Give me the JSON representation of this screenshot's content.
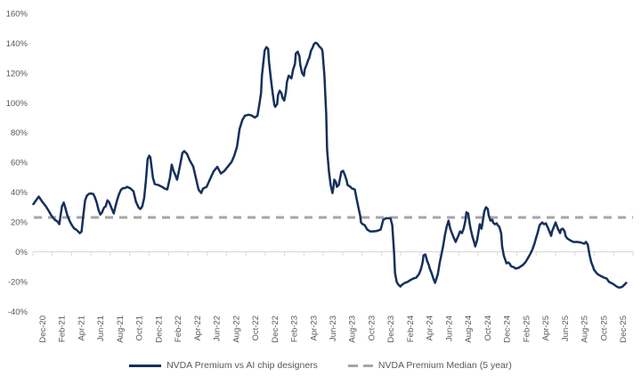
{
  "colors": {
    "series_line": "#16305c",
    "median_line": "#a6a6a6",
    "axis_line": "#d9d9d9",
    "label_text": "#595959",
    "background": "#ffffff"
  },
  "legend": {
    "series1_label": "NVDA Premium vs AI chip designers",
    "series2_label": "NVDA Premium Median (5 year)"
  },
  "chart_data": {
    "type": "line",
    "title": "",
    "xlabel": "",
    "ylabel": "",
    "grid": "only zero axis line",
    "legend_position": "bottom-center",
    "y_axis": {
      "min": -40,
      "max": 160,
      "step": 20,
      "format": "percent",
      "tick_labels": [
        "160%",
        "140%",
        "120%",
        "100%",
        "80%",
        "60%",
        "40%",
        "20%",
        "0%",
        "-20%",
        "-40%"
      ]
    },
    "x_axis": {
      "unit": "month",
      "range_months": [
        0,
        61
      ],
      "labels": [
        "Dec-20",
        "Feb-21",
        "Apr-21",
        "Jun-21",
        "Aug-21",
        "Oct-21",
        "Dec-21",
        "Feb-22",
        "Apr-22",
        "Jun-22",
        "Aug-22",
        "Oct-22",
        "Dec-22",
        "Feb-23",
        "Apr-23",
        "Jun-23",
        "Aug-23",
        "Oct-23",
        "Dec-23",
        "Feb-24",
        "Apr-24",
        "Jun-24",
        "Aug-24",
        "Oct-24",
        "Dec-24",
        "Feb-25",
        "Apr-25",
        "Jun-25",
        "Aug-25",
        "Oct-25",
        "Dec-25"
      ],
      "label_rotation_deg": -90
    },
    "series": [
      {
        "name": "NVDA Premium vs AI chip designers",
        "style": "solid",
        "color": "#16305c",
        "points": [
          [
            0,
            32
          ],
          [
            0.55,
            37
          ],
          [
            0.92,
            33.5
          ],
          [
            1.28,
            30.5
          ],
          [
            1.56,
            27.5
          ],
          [
            1.83,
            24.5
          ],
          [
            2.2,
            21.5
          ],
          [
            2.48,
            20.3
          ],
          [
            2.66,
            18.5
          ],
          [
            2.94,
            30.5
          ],
          [
            3.12,
            33
          ],
          [
            3.3,
            29
          ],
          [
            3.49,
            24.5
          ],
          [
            3.67,
            21.5
          ],
          [
            3.85,
            19
          ],
          [
            4.04,
            17
          ],
          [
            4.22,
            15.5
          ],
          [
            4.4,
            14.9
          ],
          [
            4.59,
            13.7
          ],
          [
            4.77,
            12.5
          ],
          [
            4.95,
            13.5
          ],
          [
            5.14,
            25
          ],
          [
            5.32,
            34.5
          ],
          [
            5.5,
            37.6
          ],
          [
            5.7,
            38.8
          ],
          [
            5.87,
            39.1
          ],
          [
            6.15,
            38.8
          ],
          [
            6.33,
            36.4
          ],
          [
            6.51,
            32.9
          ],
          [
            6.7,
            28
          ],
          [
            6.88,
            25
          ],
          [
            7.06,
            26.5
          ],
          [
            7.25,
            29.5
          ],
          [
            7.43,
            30.5
          ],
          [
            7.61,
            34.5
          ],
          [
            7.8,
            33
          ],
          [
            8.07,
            28.7
          ],
          [
            8.26,
            25.7
          ],
          [
            8.44,
            30.5
          ],
          [
            8.62,
            35
          ],
          [
            8.81,
            38.8
          ],
          [
            8.99,
            41.5
          ],
          [
            9.17,
            42.5
          ],
          [
            9.45,
            42.8
          ],
          [
            9.63,
            43.6
          ],
          [
            10,
            42.4
          ],
          [
            10.28,
            40.6
          ],
          [
            10.55,
            33.4
          ],
          [
            10.83,
            29.5
          ],
          [
            11.01,
            28.7
          ],
          [
            11.19,
            30.5
          ],
          [
            11.38,
            36
          ],
          [
            11.56,
            47.8
          ],
          [
            11.74,
            62
          ],
          [
            11.9,
            64.5
          ],
          [
            12.02,
            63.3
          ],
          [
            12.29,
            49.6
          ],
          [
            12.48,
            45.4
          ],
          [
            12.84,
            44.8
          ],
          [
            13.21,
            43.6
          ],
          [
            13.49,
            42.4
          ],
          [
            13.76,
            41.8
          ],
          [
            14.04,
            50
          ],
          [
            14.22,
            58.5
          ],
          [
            14.4,
            54.3
          ],
          [
            14.59,
            51.3
          ],
          [
            14.77,
            48.4
          ],
          [
            15.05,
            57.3
          ],
          [
            15.32,
            66.3
          ],
          [
            15.5,
            67.5
          ],
          [
            15.78,
            65.7
          ],
          [
            16.06,
            61.5
          ],
          [
            16.42,
            57.3
          ],
          [
            16.7,
            49.6
          ],
          [
            16.97,
            41.8
          ],
          [
            17.25,
            39.4
          ],
          [
            17.43,
            42.4
          ],
          [
            17.8,
            43.6
          ],
          [
            18.17,
            49
          ],
          [
            18.53,
            54
          ],
          [
            18.9,
            57
          ],
          [
            19.27,
            52.5
          ],
          [
            19.63,
            54.3
          ],
          [
            20,
            57.3
          ],
          [
            20.37,
            60.3
          ],
          [
            20.64,
            64.5
          ],
          [
            20.92,
            70.4
          ],
          [
            21.19,
            82.4
          ],
          [
            21.47,
            88.4
          ],
          [
            21.74,
            91.3
          ],
          [
            22.11,
            92
          ],
          [
            22.48,
            91.3
          ],
          [
            22.75,
            90.1
          ],
          [
            23.03,
            91.3
          ],
          [
            23.21,
            98.5
          ],
          [
            23.39,
            106.3
          ],
          [
            23.49,
            118.2
          ],
          [
            23.67,
            129
          ],
          [
            23.76,
            134.9
          ],
          [
            23.94,
            137.3
          ],
          [
            24.13,
            136.1
          ],
          [
            24.22,
            127.2
          ],
          [
            24.4,
            116.4
          ],
          [
            24.59,
            106.3
          ],
          [
            24.77,
            98.5
          ],
          [
            24.86,
            97.3
          ],
          [
            25.05,
            99.1
          ],
          [
            25.14,
            105.1
          ],
          [
            25.32,
            108.1
          ],
          [
            25.5,
            106.3
          ],
          [
            25.6,
            103.3
          ],
          [
            25.78,
            101.5
          ],
          [
            25.96,
            107.5
          ],
          [
            26.06,
            114
          ],
          [
            26.24,
            118.2
          ],
          [
            26.42,
            117
          ],
          [
            26.51,
            116.4
          ],
          [
            26.7,
            122.4
          ],
          [
            26.88,
            126
          ],
          [
            26.97,
            133.1
          ],
          [
            27.16,
            134.3
          ],
          [
            27.34,
            131.3
          ],
          [
            27.43,
            125.4
          ],
          [
            27.61,
            120
          ],
          [
            27.8,
            118.2
          ],
          [
            27.89,
            122.4
          ],
          [
            28.07,
            125.4
          ],
          [
            28.26,
            129
          ],
          [
            28.35,
            130.2
          ],
          [
            28.53,
            134.9
          ],
          [
            28.72,
            137.3
          ],
          [
            28.81,
            139.1
          ],
          [
            28.99,
            140.3
          ],
          [
            29.17,
            139.7
          ],
          [
            29.36,
            138
          ],
          [
            29.45,
            137.3
          ],
          [
            29.63,
            136.1
          ],
          [
            29.72,
            134.3
          ],
          [
            29.91,
            118.2
          ],
          [
            30.09,
            92.5
          ],
          [
            30.18,
            68.7
          ],
          [
            30.37,
            54.3
          ],
          [
            30.55,
            44.8
          ],
          [
            30.73,
            39.4
          ],
          [
            30.83,
            43
          ],
          [
            30.92,
            48.4
          ],
          [
            31.1,
            46.6
          ],
          [
            31.19,
            43.6
          ],
          [
            31.38,
            44.8
          ],
          [
            31.65,
            53.7
          ],
          [
            31.83,
            54.3
          ],
          [
            32.02,
            51.3
          ],
          [
            32.2,
            47.8
          ],
          [
            32.29,
            44.8
          ],
          [
            32.57,
            43.6
          ],
          [
            32.75,
            42.4
          ],
          [
            33.03,
            41.8
          ],
          [
            33.21,
            35.8
          ],
          [
            33.39,
            29.9
          ],
          [
            33.58,
            24.5
          ],
          [
            33.67,
            19.7
          ],
          [
            33.85,
            18.5
          ],
          [
            34.04,
            17.9
          ],
          [
            34.31,
            14.9
          ],
          [
            34.59,
            13.7
          ],
          [
            34.95,
            13.7
          ],
          [
            35.32,
            14
          ],
          [
            35.69,
            14.9
          ],
          [
            35.96,
            21.5
          ],
          [
            36.24,
            22.5
          ],
          [
            36.7,
            22.5
          ],
          [
            36.88,
            17.9
          ],
          [
            37.06,
            0
          ],
          [
            37.16,
            -14.3
          ],
          [
            37.34,
            -20.3
          ],
          [
            37.52,
            -22.1
          ],
          [
            37.71,
            -23.3
          ],
          [
            37.89,
            -22.1
          ],
          [
            38.17,
            -20.9
          ],
          [
            38.44,
            -20.3
          ],
          [
            38.72,
            -19.1
          ],
          [
            39.08,
            -17.9
          ],
          [
            39.36,
            -17.3
          ],
          [
            39.63,
            -14.9
          ],
          [
            39.82,
            -11.9
          ],
          [
            40,
            -7.2
          ],
          [
            40.09,
            -2.4
          ],
          [
            40.28,
            -1.8
          ],
          [
            40.46,
            -6
          ],
          [
            40.64,
            -9
          ],
          [
            40.73,
            -11.3
          ],
          [
            40.92,
            -14.3
          ],
          [
            41.1,
            -17.9
          ],
          [
            41.28,
            -20.9
          ],
          [
            41.56,
            -15
          ],
          [
            41.74,
            -8
          ],
          [
            41.93,
            -2
          ],
          [
            42.11,
            4
          ],
          [
            42.29,
            11
          ],
          [
            42.48,
            17
          ],
          [
            42.66,
            20.9
          ],
          [
            42.84,
            15.5
          ],
          [
            43.12,
            10.7
          ],
          [
            43.39,
            6.6
          ],
          [
            43.67,
            10.7
          ],
          [
            43.85,
            13.7
          ],
          [
            44.04,
            12.5
          ],
          [
            44.22,
            15.5
          ],
          [
            44.4,
            21
          ],
          [
            44.5,
            26.5
          ],
          [
            44.68,
            25.7
          ],
          [
            44.86,
            18
          ],
          [
            44.95,
            14.9
          ],
          [
            45.14,
            9.6
          ],
          [
            45.32,
            6
          ],
          [
            45.41,
            3.6
          ],
          [
            45.6,
            7.8
          ],
          [
            45.78,
            14.9
          ],
          [
            45.87,
            18.5
          ],
          [
            46.06,
            15.5
          ],
          [
            46.24,
            22.7
          ],
          [
            46.33,
            26.9
          ],
          [
            46.51,
            29.9
          ],
          [
            46.7,
            28.7
          ],
          [
            46.79,
            24.5
          ],
          [
            46.97,
            20.9
          ],
          [
            47.16,
            21.5
          ],
          [
            47.25,
            19.7
          ],
          [
            47.43,
            18.5
          ],
          [
            47.61,
            19.1
          ],
          [
            47.71,
            17.9
          ],
          [
            47.89,
            16.7
          ],
          [
            48.07,
            12.5
          ],
          [
            48.17,
            3.6
          ],
          [
            48.35,
            -2.8
          ],
          [
            48.53,
            -6
          ],
          [
            48.62,
            -7.8
          ],
          [
            48.81,
            -7.2
          ],
          [
            48.99,
            -8.4
          ],
          [
            49.08,
            -9.6
          ],
          [
            49.27,
            -10.1
          ],
          [
            49.45,
            -10.7
          ],
          [
            49.54,
            -11.3
          ],
          [
            49.91,
            -10.7
          ],
          [
            50,
            -10.1
          ],
          [
            50.28,
            -9
          ],
          [
            50.55,
            -7.2
          ],
          [
            50.83,
            -4.2
          ],
          [
            51.1,
            -1
          ],
          [
            51.28,
            1.5
          ],
          [
            51.47,
            5
          ],
          [
            51.65,
            9
          ],
          [
            51.83,
            13
          ],
          [
            52.02,
            17.9
          ],
          [
            52.29,
            19.7
          ],
          [
            52.48,
            18.5
          ],
          [
            52.66,
            19.1
          ],
          [
            52.84,
            16.7
          ],
          [
            53.03,
            13.7
          ],
          [
            53.21,
            10.7
          ],
          [
            53.3,
            13.7
          ],
          [
            53.49,
            16.7
          ],
          [
            53.67,
            19.7
          ],
          [
            53.76,
            17.9
          ],
          [
            53.94,
            14.9
          ],
          [
            54.13,
            12.5
          ],
          [
            54.22,
            14.9
          ],
          [
            54.4,
            15.5
          ],
          [
            54.59,
            13.7
          ],
          [
            54.68,
            10.7
          ],
          [
            54.86,
            9
          ],
          [
            55.14,
            7.8
          ],
          [
            55.5,
            6.6
          ],
          [
            55.87,
            6.6
          ],
          [
            56.24,
            6.3
          ],
          [
            56.61,
            5.4
          ],
          [
            56.79,
            6.6
          ],
          [
            56.97,
            4.8
          ],
          [
            57.16,
            -2.4
          ],
          [
            57.34,
            -7.2
          ],
          [
            57.52,
            -10.1
          ],
          [
            57.61,
            -12
          ],
          [
            57.8,
            -13.7
          ],
          [
            57.98,
            -15
          ],
          [
            58.26,
            -16.1
          ],
          [
            58.62,
            -17.3
          ],
          [
            58.9,
            -17.9
          ],
          [
            59.17,
            -20.3
          ],
          [
            59.54,
            -21.5
          ],
          [
            59.82,
            -22.7
          ],
          [
            60.09,
            -23.9
          ],
          [
            60.37,
            -23.9
          ],
          [
            60.55,
            -23.3
          ],
          [
            60.73,
            -22.1
          ],
          [
            60.92,
            -20.9
          ]
        ]
      },
      {
        "name": "NVDA Premium Median (5 year)",
        "style": "dashed",
        "color": "#a6a6a6",
        "constant_value": 23
      }
    ]
  }
}
